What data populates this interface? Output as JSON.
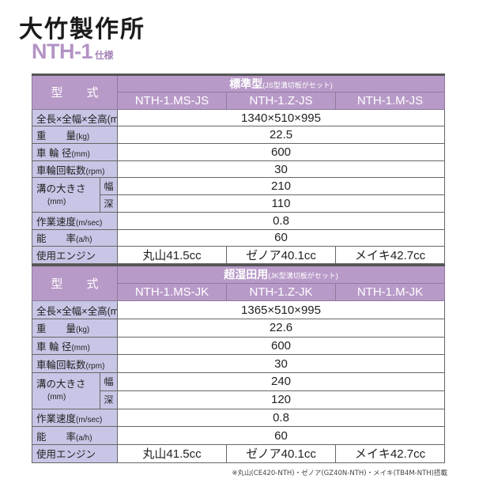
{
  "header": {
    "logo": "大竹製作所",
    "title": "NTH-1",
    "title_suffix": "仕様"
  },
  "labels": {
    "model": "型　　式",
    "dims": "全長×全幅×全高(mm)",
    "weight": "重　　量",
    "weight_unit": "(kg)",
    "wheel": "車 輪 径",
    "wheel_unit": "(mm)",
    "rpm": "車輪回転数",
    "rpm_unit": "(rpm)",
    "groove": "溝の大きさ",
    "groove_unit": "(mm)",
    "width": "幅",
    "depth": "深",
    "speed": "作業速度",
    "speed_unit": "(m/sec)",
    "efficiency": "能　　率",
    "eff_unit": "(a/h)",
    "engine": "使用エンジン"
  },
  "tables": [
    {
      "group": "標準型",
      "group_note": "(JS型溝切板がセット)",
      "models": [
        "NTH-1.MS-JS",
        "NTH-1.Z-JS",
        "NTH-1.M-JS"
      ],
      "dims": "1340×510×995",
      "weight": "22.5",
      "wheel": "600",
      "rpm": "30",
      "width": "210",
      "depth": "110",
      "speed": "0.8",
      "efficiency": "60",
      "engines": [
        "丸山41.5cc",
        "ゼノア40.1cc",
        "メイキ42.7cc"
      ]
    },
    {
      "group": "超湿田用",
      "group_note": "(JK型溝切板がセット)",
      "models": [
        "NTH-1.MS-JK",
        "NTH-1.Z-JK",
        "NTH-1.M-JK"
      ],
      "dims": "1365×510×995",
      "weight": "22.6",
      "wheel": "600",
      "rpm": "30",
      "width": "240",
      "depth": "120",
      "speed": "0.8",
      "efficiency": "60",
      "engines": [
        "丸山41.5cc",
        "ゼノア40.1cc",
        "メイキ42.7cc"
      ]
    }
  ],
  "footnote": "※丸山(CE420-NTH)・ゼノア(GZ40N-NTH)・メイキ(TB4M-NTH)搭載"
}
